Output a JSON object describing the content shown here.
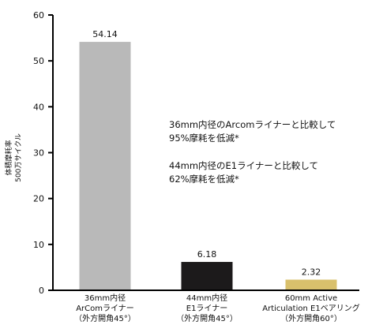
{
  "chart_data": {
    "type": "bar",
    "ylabel_lines": [
      "体積摩耗率",
      "500万サイクル"
    ],
    "ylim": [
      0,
      60
    ],
    "yticks": [
      0,
      10,
      20,
      30,
      40,
      50,
      60
    ],
    "grid": false,
    "categories": [
      {
        "lines": [
          "36mm内径",
          "ArComライナー",
          "（外方開角45°）"
        ],
        "value": 54.14,
        "value_label": "54.14",
        "color": "#b9b9b9"
      },
      {
        "lines": [
          "44mm内径",
          "E1ライナー",
          "（外方開角45°）"
        ],
        "value": 6.18,
        "value_label": "6.18",
        "color": "#1c1a1b"
      },
      {
        "lines": [
          "60mm Active",
          "Articulation E1ベアリング",
          "（外方開角60°）"
        ],
        "value": 2.32,
        "value_label": "2.32",
        "color": "#d9c06c"
      }
    ],
    "annotations": [
      [
        "36mm内径のArcomライナーと比較して",
        "95%摩耗を低減*"
      ],
      [
        "44mm内径のE1ライナーと比較して",
        "62%摩耗を低減*"
      ]
    ]
  }
}
